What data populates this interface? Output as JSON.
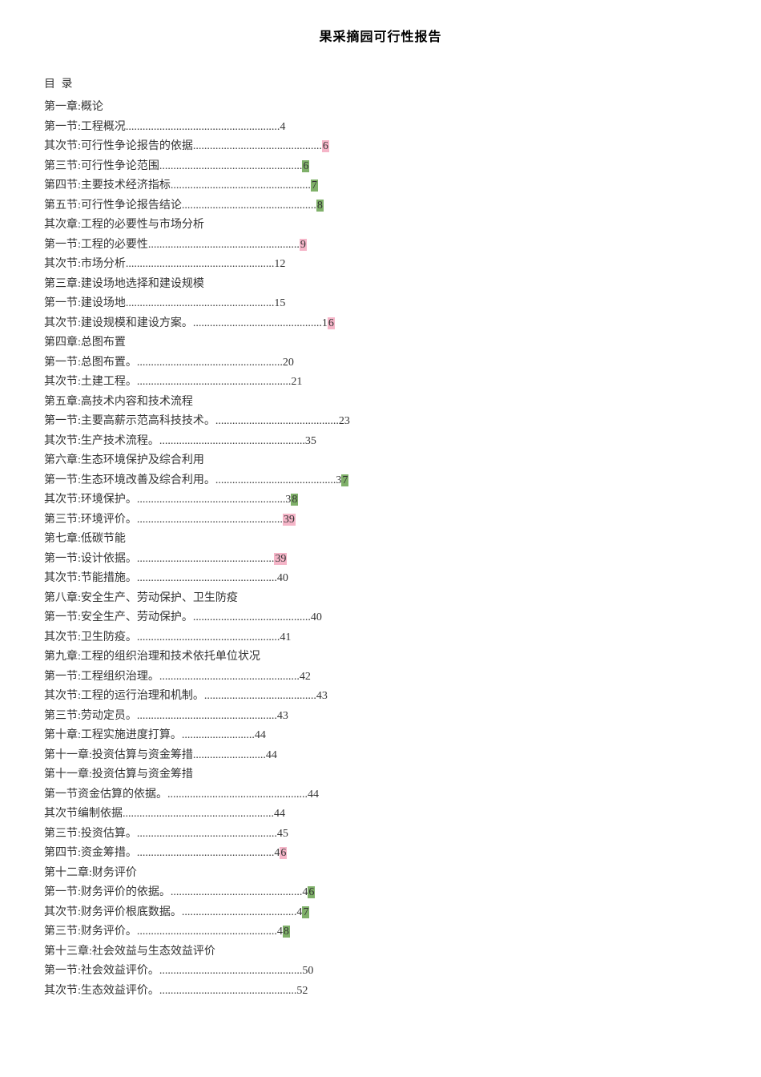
{
  "title": "果采摘园可行性报告",
  "toc_heading": "目 录",
  "entries": [
    {
      "text": "第一章:概论",
      "type": "chapter"
    },
    {
      "text": "第一节:工程概况",
      "leader": ".......................................................",
      "page": "4",
      "type": "section"
    },
    {
      "text": "其次节:可行性争论报告的依据",
      "leader": "..............................................",
      "page": "6",
      "type": "section",
      "page_hl": "pink"
    },
    {
      "text": "第三节:可行性争论范围",
      "leader": "...................................................",
      "page": "6",
      "type": "section",
      "page_hl": "green"
    },
    {
      "text": "第四节:主要技术经济指标",
      "leader": "..................................................",
      "page": "7",
      "type": "section",
      "page_hl": "green"
    },
    {
      "text": "第五节:可行性争论报告结论",
      "leader": "................................................",
      "page": "8",
      "type": "section",
      "page_hl": "green"
    },
    {
      "text": "其次章:工程的必要性与市场分析",
      "type": "chapter"
    },
    {
      "text": "第一节:工程的必要性",
      "leader": "......................................................",
      "page": "9",
      "type": "section",
      "page_hl": "pink"
    },
    {
      "text": "其次节:市场分析",
      "leader": ".....................................................",
      "page": "12",
      "type": "section"
    },
    {
      "text": "第三章:建设场地选择和建设规模",
      "type": "chapter"
    },
    {
      "text": "第一节:建设场地",
      "leader": ".....................................................",
      "page": "15",
      "type": "section"
    },
    {
      "text": "其次节:建设规模和建设方案。",
      "leader": "..............................................",
      "page": "16",
      "type": "section",
      "page_last_hl": "pink"
    },
    {
      "text": "第四章:总图布置",
      "type": "chapter"
    },
    {
      "text": "第一节:总图布置。",
      "leader": "....................................................",
      "page": "20",
      "type": "section"
    },
    {
      "text": "其次节:土建工程。",
      "leader": ".......................................................",
      "page": "21",
      "type": "section"
    },
    {
      "text": "第五章:高技术内容和技术流程",
      "type": "chapter"
    },
    {
      "text": "第一节:主要高薪示范高科技技术。",
      "leader": "............................................",
      "page": "23",
      "type": "section"
    },
    {
      "text": "其次节:生产技术流程。",
      "leader": "....................................................",
      "page": "35",
      "type": "section"
    },
    {
      "text": "第六章:生态环境保护及综合利用",
      "type": "chapter"
    },
    {
      "text": "第一节:生态环境改善及综合利用。",
      "leader": "...........................................",
      "page": "37",
      "type": "section",
      "page_last_hl": "green"
    },
    {
      "text": "其次节:环境保护。",
      "leader": ".....................................................",
      "page": "38",
      "type": "section",
      "page_last_hl": "green"
    },
    {
      "text": "第三节:环境评价。",
      "leader": "....................................................",
      "page": "39",
      "type": "section",
      "page_hl": "pink"
    },
    {
      "text": "第七章:低碳节能",
      "type": "chapter"
    },
    {
      "text": "第一节:设计依据。",
      "leader": ".................................................",
      "page": "39",
      "type": "section",
      "page_hl": "pink"
    },
    {
      "text": "其次节:节能措施。",
      "leader": "..................................................",
      "page": "40",
      "type": "section"
    },
    {
      "text": "第八章:安全生产、劳动保护、卫生防疫",
      "type": "chapter"
    },
    {
      "text": "第一节:安全生产、劳动保护。",
      "leader": "..........................................",
      "page": "40",
      "type": "section"
    },
    {
      "text": "其次节:卫生防疫。",
      "leader": "...................................................",
      "page": "41",
      "type": "section"
    },
    {
      "text": "第九章:工程的组织治理和技术依托单位状况",
      "type": "chapter"
    },
    {
      "text": "第一节:工程组织治理。",
      "leader": "..................................................",
      "page": "42",
      "type": "section"
    },
    {
      "text": "其次节:工程的运行治理和机制。",
      "leader": "........................................",
      "page": "43",
      "type": "section"
    },
    {
      "text": "第三节:劳动定员。",
      "leader": "..................................................",
      "page": "43",
      "type": "section"
    },
    {
      "text": "第十章:工程实施进度打算。",
      "leader": "..........................",
      "page": "44",
      "type": "section"
    },
    {
      "text": "第十一章:投资估算与资金筹措",
      "leader": "..........................",
      "page": "44",
      "type": "section"
    },
    {
      "text": "第十一章:投资估算与资金筹措",
      "type": "chapter"
    },
    {
      "text": "第一节资金估算的依据。",
      "leader": "..................................................",
      "page": "44",
      "type": "section"
    },
    {
      "text": "其次节编制依据",
      "leader": "......................................................",
      "page": "44",
      "type": "section"
    },
    {
      "text": "第三节:投资估算。",
      "leader": "..................................................",
      "page": "45",
      "type": "section"
    },
    {
      "text": "第四节:资金筹措。",
      "leader": ".................................................",
      "page": "46",
      "type": "section",
      "page_last_hl": "pink"
    },
    {
      "text": "第十二章:财务评价",
      "type": "chapter"
    },
    {
      "text": "第一节:财务评价的依据。",
      "leader": "...............................................",
      "page": "46",
      "type": "section",
      "page_last_hl": "green"
    },
    {
      "text": "其次节:财务评价根底数据。",
      "leader": ".........................................",
      "page": "47",
      "type": "section",
      "page_last_hl": "green"
    },
    {
      "text": "第三节:财务评价。",
      "leader": "..................................................",
      "page": "48",
      "type": "section",
      "page_last_hl": "green"
    },
    {
      "text": "第十三章:社会效益与生态效益评价",
      "type": "chapter"
    },
    {
      "text": "第一节:社会效益评价。",
      "leader": "...................................................",
      "page": "50",
      "type": "section"
    },
    {
      "text": "其次节:生态效益评价。",
      "leader": ".................................................",
      "page": "52",
      "type": "section"
    }
  ],
  "colors": {
    "hl_pink": "#f5b5c8",
    "hl_green": "#7fb069",
    "text": "#333333",
    "bg": "#ffffff"
  }
}
